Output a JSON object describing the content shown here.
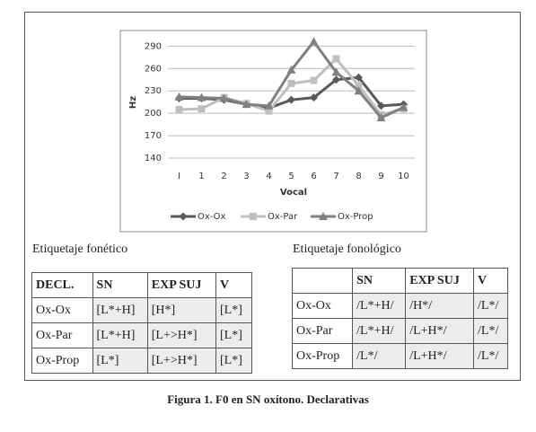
{
  "chart_data": {
    "type": "line",
    "y_label": "Hz",
    "x_label": "Vocal",
    "categories": [
      "I",
      "1",
      "2",
      "3",
      "4",
      "5",
      "6",
      "7",
      "8",
      "9",
      "10"
    ],
    "series": [
      {
        "name": "Ox-Ox",
        "color": "#595959",
        "marker": "diamond",
        "values": [
          220,
          220,
          218,
          212,
          207,
          218,
          221,
          245,
          248,
          210,
          212
        ]
      },
      {
        "name": "Ox-Par",
        "color": "#bfbfbf",
        "marker": "square",
        "values": [
          205,
          206,
          221,
          213,
          203,
          240,
          244,
          273,
          237,
          198,
          206
        ]
      },
      {
        "name": "Ox-Prop",
        "color": "#808080",
        "marker": "triangle",
        "values": [
          222,
          221,
          220,
          212,
          210,
          258,
          296,
          255,
          230,
          194,
          208
        ]
      }
    ],
    "ylim": [
      140,
      300
    ],
    "yticks": [
      140,
      170,
      200,
      230,
      260,
      290
    ],
    "grid": true,
    "legend": "bottom"
  },
  "tables": [
    {
      "title": "Etiquetaje fonético",
      "header": [
        "DECL.",
        "SN",
        "EXP SUJ",
        "V"
      ],
      "rows": [
        [
          "Ox-Ox",
          "[L*+H]",
          "[H*]",
          "[L*]"
        ],
        [
          "Ox-Par",
          "[L*+H]",
          "[L+>H*]",
          "[L*]"
        ],
        [
          "Ox-Prop",
          "[L*]",
          "[L+>H*]",
          "[L*]"
        ]
      ]
    },
    {
      "title": "Etiquetaje fonológico",
      "header": [
        "SN",
        "EXP SUJ",
        "V"
      ],
      "rows": [
        [
          "Ox-Ox",
          "/L*+H/",
          "/H*/",
          "/L*/"
        ],
        [
          "Ox-Par",
          "/L*+H/",
          "/L+H*/",
          "/L*/"
        ],
        [
          "Ox-Prop",
          "/L*/",
          "/L+H*/",
          "/L*/"
        ]
      ]
    }
  ],
  "caption": "Figura 1. F0 en SN oxítono. Declarativas"
}
